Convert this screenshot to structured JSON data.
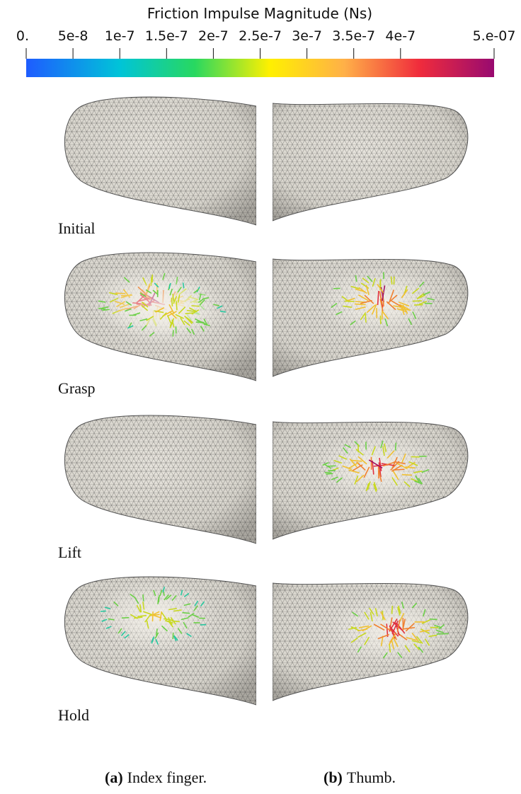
{
  "colorbar": {
    "title": "Friction Impulse Magnitude (Ns)",
    "range": [
      0,
      5e-07
    ],
    "ticks": [
      {
        "value": 0,
        "label": "0."
      },
      {
        "value": 5e-08,
        "label": "5e-8"
      },
      {
        "value": 1e-07,
        "label": "1e-7"
      },
      {
        "value": 1.5e-07,
        "label": "1.5e-7"
      },
      {
        "value": 2e-07,
        "label": "2e-7"
      },
      {
        "value": 2.5e-07,
        "label": "2.5e-7"
      },
      {
        "value": 3e-07,
        "label": "3e-7"
      },
      {
        "value": 3.5e-07,
        "label": "3.5e-7"
      },
      {
        "value": 4e-07,
        "label": "4e-7"
      },
      {
        "value": 5e-07,
        "label": "5.e-07"
      }
    ]
  },
  "rows": [
    "Initial",
    "Grasp",
    "Lift",
    "Hold"
  ],
  "captions": [
    {
      "tag": "(a)",
      "text": "Index finger."
    },
    {
      "tag": "(b)",
      "text": "Thumb."
    }
  ]
}
